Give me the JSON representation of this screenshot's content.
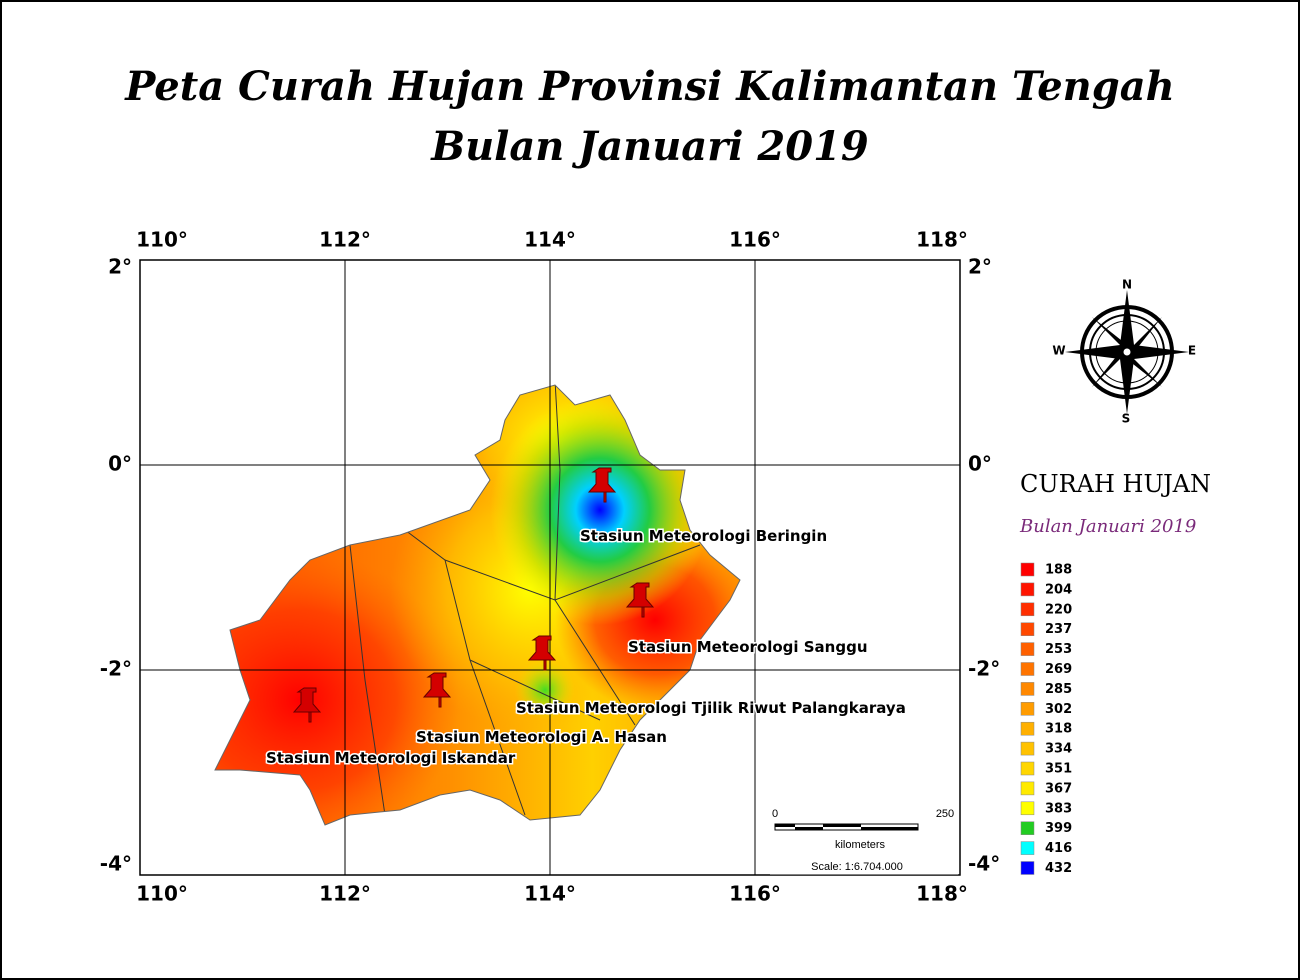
{
  "header": {
    "title_line1": "Peta Curah Hujan Provinsi Kalimantan Tengah",
    "title_line2": "Bulan Januari 2019"
  },
  "map": {
    "lon_ticks": [
      {
        "value": 110,
        "label": "110°"
      },
      {
        "value": 112,
        "label": "112°"
      },
      {
        "value": 114,
        "label": "114°"
      },
      {
        "value": 116,
        "label": "116°"
      },
      {
        "value": 118,
        "label": "118°"
      }
    ],
    "lat_ticks": [
      {
        "value": 2,
        "label": "2°"
      },
      {
        "value": 0,
        "label": "0°"
      },
      {
        "value": -2,
        "label": "-2°"
      },
      {
        "value": -4,
        "label": "-4°"
      }
    ],
    "stations": [
      "Stasiun Meteorologi Beringin",
      "Stasiun Meteorologi Sanggu",
      "Stasiun Meteorologi  Tjilik Riwut Palangkaraya",
      "Stasiun Meteorologi A. Hasan",
      "Stasiun Meteorologi Iskandar"
    ],
    "scale_bar": {
      "start": "0",
      "end": "250",
      "unit": "kilometers",
      "scale": "Scale: 1:6.704.000"
    }
  },
  "compass": {
    "north": "N",
    "east": "E",
    "south": "S",
    "west": "W"
  },
  "legend": {
    "title": "CURAH HUJAN",
    "subtitle": "Bulan Januari 2019",
    "items": [
      {
        "label": "188",
        "color": "#ff0000"
      },
      {
        "label": "204",
        "color": "#ff1400"
      },
      {
        "label": "220",
        "color": "#ff2e00"
      },
      {
        "label": "237",
        "color": "#ff4800"
      },
      {
        "label": "253",
        "color": "#ff6000"
      },
      {
        "label": "269",
        "color": "#ff7400"
      },
      {
        "label": "285",
        "color": "#ff8800"
      },
      {
        "label": "302",
        "color": "#ff9c00"
      },
      {
        "label": "318",
        "color": "#ffb000"
      },
      {
        "label": "334",
        "color": "#ffc200"
      },
      {
        "label": "351",
        "color": "#ffd600"
      },
      {
        "label": "367",
        "color": "#ffea00"
      },
      {
        "label": "383",
        "color": "#ffff00"
      },
      {
        "label": "399",
        "color": "#22cc22"
      },
      {
        "label": "416",
        "color": "#00ffff"
      },
      {
        "label": "432",
        "color": "#0000ff"
      }
    ]
  }
}
